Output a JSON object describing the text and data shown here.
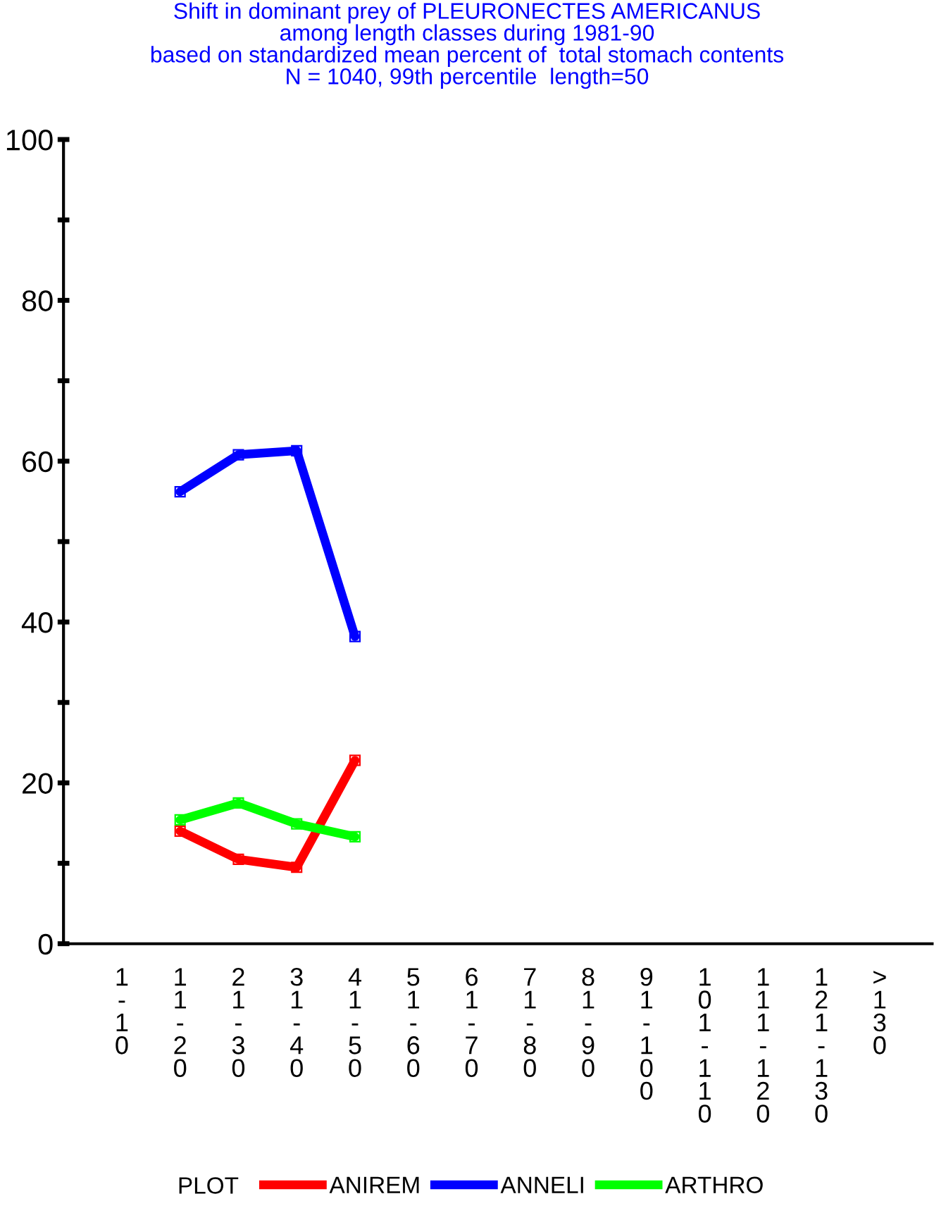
{
  "chart_data": {
    "type": "line",
    "title": "Shift in dominant prey of PLEURONECTES AMERICANUS\namong length classes during 1981-90\nbased on standardized mean percent of  total stomach contents\nN = 1040, 99th percentile  length=50",
    "categories": [
      "1-10",
      "11-20",
      "21-30",
      "31-40",
      "41-50",
      "51-60",
      "61-70",
      "71-80",
      "81-90",
      "91-100",
      "101-110",
      "111-120",
      "121-130",
      ">130"
    ],
    "series": [
      {
        "name": "ANIREM",
        "color": "#ff0000",
        "values": [
          null,
          14.0,
          10.5,
          9.5,
          22.8,
          null,
          null,
          null,
          null,
          null,
          null,
          null,
          null,
          null
        ]
      },
      {
        "name": "ANNELI",
        "color": "#0000ff",
        "values": [
          null,
          56.2,
          60.8,
          61.3,
          38.2,
          null,
          null,
          null,
          null,
          null,
          null,
          null,
          null,
          null
        ]
      },
      {
        "name": "ARTHRO",
        "color": "#00ff00",
        "values": [
          null,
          15.4,
          17.5,
          14.9,
          13.3,
          null,
          null,
          null,
          null,
          null,
          null,
          null,
          null,
          null
        ]
      }
    ],
    "ylim": [
      0,
      100
    ],
    "yticks": [
      0,
      {
        "value": 10,
        "label": null
      },
      20,
      {
        "value": 30,
        "label": null
      },
      40,
      {
        "value": 50,
        "label": null
      },
      60,
      {
        "value": 70,
        "label": null
      },
      80,
      {
        "value": 90,
        "label": null
      },
      100
    ],
    "legend_title": "PLOT",
    "legend": "bottom",
    "marker": "square",
    "line_style": "solid",
    "grid": false
  }
}
